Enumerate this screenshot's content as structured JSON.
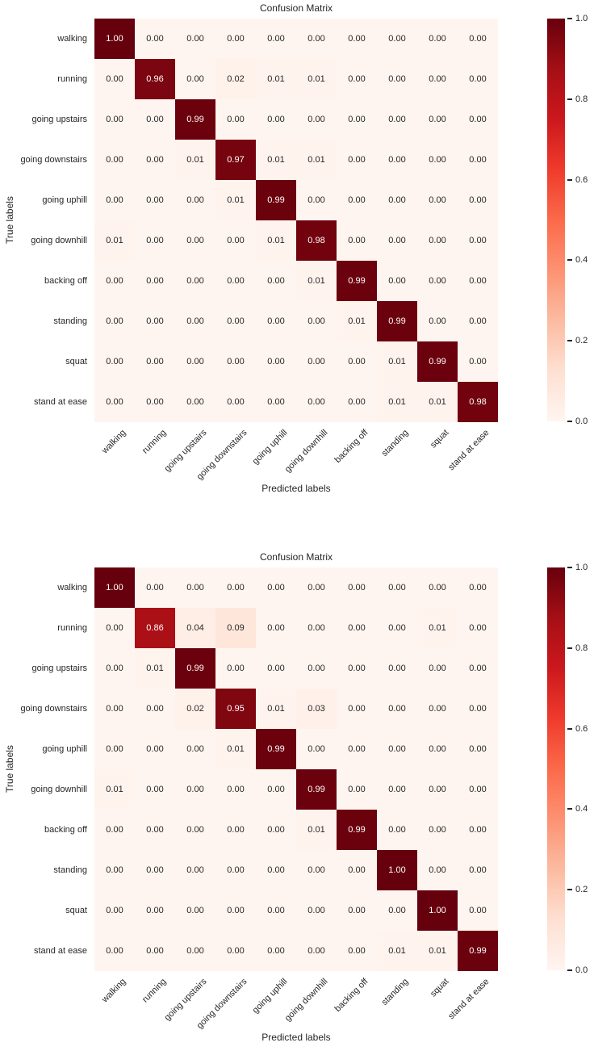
{
  "figure": {
    "background_color": "#ffffff",
    "text_color": "#262626"
  },
  "chart_data": [
    {
      "type": "heatmap",
      "title": "Confusion Matrix",
      "xlabel": "Predicted labels",
      "ylabel": "True labels",
      "x_categories": [
        "walking",
        "running",
        "going upstairs",
        "going downstairs",
        "going uphill",
        "going downhill",
        "backing off",
        "standing",
        "squat",
        "stand at ease"
      ],
      "y_categories": [
        "walking",
        "running",
        "going upstairs",
        "going downstairs",
        "going uphill",
        "going downhill",
        "backing off",
        "standing",
        "squat",
        "stand at ease"
      ],
      "values": [
        [
          1.0,
          0.0,
          0.0,
          0.0,
          0.0,
          0.0,
          0.0,
          0.0,
          0.0,
          0.0
        ],
        [
          0.0,
          0.96,
          0.0,
          0.02,
          0.01,
          0.01,
          0.0,
          0.0,
          0.0,
          0.0
        ],
        [
          0.0,
          0.0,
          0.99,
          0.0,
          0.0,
          0.0,
          0.0,
          0.0,
          0.0,
          0.0
        ],
        [
          0.0,
          0.0,
          0.01,
          0.97,
          0.01,
          0.01,
          0.0,
          0.0,
          0.0,
          0.0
        ],
        [
          0.0,
          0.0,
          0.0,
          0.01,
          0.99,
          0.0,
          0.0,
          0.0,
          0.0,
          0.0
        ],
        [
          0.01,
          0.0,
          0.0,
          0.0,
          0.01,
          0.98,
          0.0,
          0.0,
          0.0,
          0.0
        ],
        [
          0.0,
          0.0,
          0.0,
          0.0,
          0.0,
          0.01,
          0.99,
          0.0,
          0.0,
          0.0
        ],
        [
          0.0,
          0.0,
          0.0,
          0.0,
          0.0,
          0.0,
          0.01,
          0.99,
          0.0,
          0.0
        ],
        [
          0.0,
          0.0,
          0.0,
          0.0,
          0.0,
          0.0,
          0.0,
          0.01,
          0.99,
          0.0
        ],
        [
          0.0,
          0.0,
          0.0,
          0.0,
          0.0,
          0.0,
          0.0,
          0.01,
          0.01,
          0.98
        ]
      ],
      "vmin": 0.0,
      "vmax": 1.0,
      "colormap": "Reds",
      "colormap_stops": [
        "#fff5f0",
        "#fee0d2",
        "#fcbba1",
        "#fc9272",
        "#fb6a4a",
        "#ef3b2c",
        "#cb181d",
        "#a50f15",
        "#67000d"
      ],
      "colorbar_ticks": [
        "1.0",
        "0.8",
        "0.6",
        "0.4",
        "0.2",
        "0.0"
      ],
      "annot_color_dark": "#262626",
      "annot_color_light": "#ffffff",
      "legend_position": "right-colorbar",
      "grid": false
    },
    {
      "type": "heatmap",
      "title": "Confusion Matrix",
      "xlabel": "Predicted labels",
      "ylabel": "True labels",
      "x_categories": [
        "walking",
        "running",
        "going upstairs",
        "going downstairs",
        "going uphill",
        "going downhill",
        "backing off",
        "standing",
        "squat",
        "stand at ease"
      ],
      "y_categories": [
        "walking",
        "running",
        "going upstairs",
        "going downstairs",
        "going uphill",
        "going downhill",
        "backing off",
        "standing",
        "squat",
        "stand at ease"
      ],
      "values": [
        [
          1.0,
          0.0,
          0.0,
          0.0,
          0.0,
          0.0,
          0.0,
          0.0,
          0.0,
          0.0
        ],
        [
          0.0,
          0.86,
          0.04,
          0.09,
          0.0,
          0.0,
          0.0,
          0.0,
          0.01,
          0.0
        ],
        [
          0.0,
          0.01,
          0.99,
          0.0,
          0.0,
          0.0,
          0.0,
          0.0,
          0.0,
          0.0
        ],
        [
          0.0,
          0.0,
          0.02,
          0.95,
          0.01,
          0.03,
          0.0,
          0.0,
          0.0,
          0.0
        ],
        [
          0.0,
          0.0,
          0.0,
          0.01,
          0.99,
          0.0,
          0.0,
          0.0,
          0.0,
          0.0
        ],
        [
          0.01,
          0.0,
          0.0,
          0.0,
          0.0,
          0.99,
          0.0,
          0.0,
          0.0,
          0.0
        ],
        [
          0.0,
          0.0,
          0.0,
          0.0,
          0.0,
          0.01,
          0.99,
          0.0,
          0.0,
          0.0
        ],
        [
          0.0,
          0.0,
          0.0,
          0.0,
          0.0,
          0.0,
          0.0,
          1.0,
          0.0,
          0.0
        ],
        [
          0.0,
          0.0,
          0.0,
          0.0,
          0.0,
          0.0,
          0.0,
          0.0,
          1.0,
          0.0
        ],
        [
          0.0,
          0.0,
          0.0,
          0.0,
          0.0,
          0.0,
          0.0,
          0.01,
          0.01,
          0.99
        ]
      ],
      "vmin": 0.0,
      "vmax": 1.0,
      "colormap": "Reds",
      "colormap_stops": [
        "#fff5f0",
        "#fee0d2",
        "#fcbba1",
        "#fc9272",
        "#fb6a4a",
        "#ef3b2c",
        "#cb181d",
        "#a50f15",
        "#67000d"
      ],
      "colorbar_ticks": [
        "1.0",
        "0.8",
        "0.6",
        "0.4",
        "0.2",
        "0.0"
      ],
      "annot_color_dark": "#262626",
      "annot_color_light": "#ffffff",
      "legend_position": "right-colorbar",
      "grid": false
    }
  ]
}
